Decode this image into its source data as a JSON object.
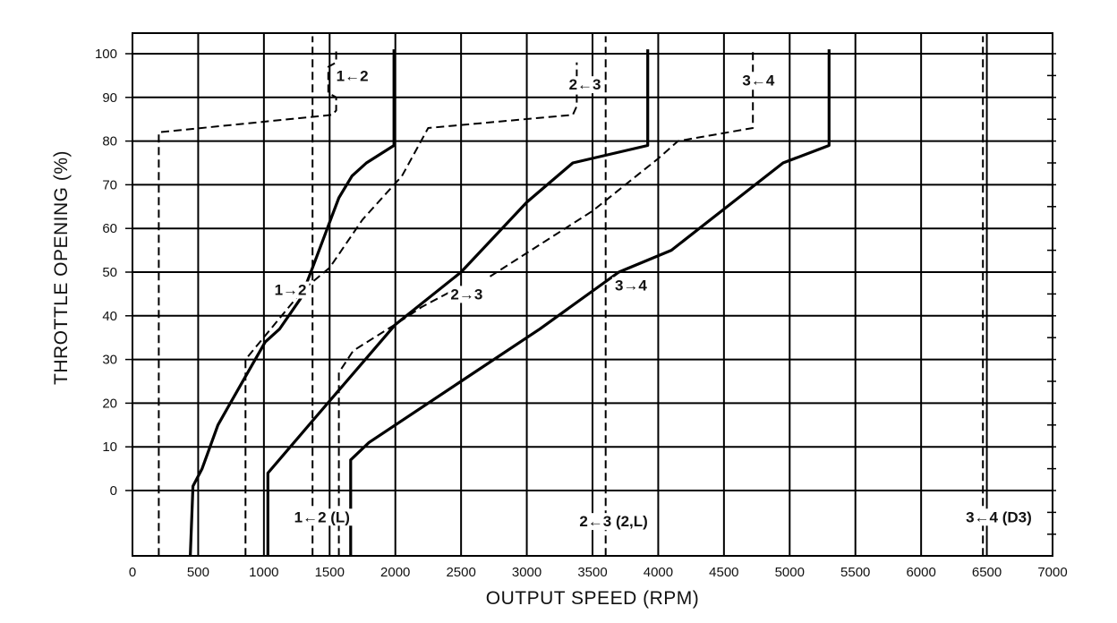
{
  "chart_data": {
    "type": "line",
    "xlabel": "OUTPUT SPEED (RPM)",
    "ylabel": "THROTTLE OPENING (%)",
    "xlim": [
      0,
      7000
    ],
    "ylim": [
      -15,
      105
    ],
    "x_ticks": [
      "0",
      "500",
      "1000",
      "1500",
      "2000",
      "2500",
      "3000",
      "3500",
      "4000",
      "4500",
      "5000",
      "5500",
      "6000",
      "6500",
      "7000"
    ],
    "y_ticks": [
      "0",
      "10",
      "20",
      "30",
      "40",
      "50",
      "60",
      "70",
      "80",
      "90",
      "100"
    ],
    "grid": true,
    "line_color": "#000000",
    "series": [
      {
        "name": "1→2",
        "style": "solid",
        "x": [
          440,
          460,
          530,
          650,
          820,
          1010,
          1120,
          1280,
          1370,
          1520,
          1570,
          1670,
          1780,
          1990,
          1990
        ],
        "y": [
          -15,
          1,
          5,
          15,
          24,
          34,
          37,
          44,
          51,
          63,
          67,
          72,
          75,
          79,
          101
        ]
      },
      {
        "name": "1←2",
        "style": "dashed",
        "x": [
          200,
          200,
          1520,
          1550,
          1550,
          1490,
          1490,
          1550,
          1550
        ],
        "y": [
          -15,
          82,
          86,
          87,
          90,
          91,
          97,
          98,
          101
        ]
      },
      {
        "name": "",
        "style": "dashed",
        "x": [
          860,
          860,
          1300,
          1500,
          1750,
          2050,
          2250,
          3350,
          3380,
          3380
        ],
        "y": [
          -15,
          30,
          46,
          51,
          62,
          72,
          83,
          86,
          88,
          98
        ]
      },
      {
        "name": "2→3",
        "style": "solid",
        "x": [
          1030,
          1030,
          1400,
          2000,
          2500,
          3000,
          3350,
          3920,
          3920
        ],
        "y": [
          -15,
          4,
          17,
          38,
          50,
          66,
          75,
          79,
          101
        ]
      },
      {
        "name": "2←3",
        "style": "dashed",
        "x": [
          1570,
          1570,
          1680,
          2050,
          2200,
          2450
        ],
        "y": [
          -15,
          27,
          32,
          39,
          42,
          46
        ]
      },
      {
        "name": "",
        "style": "dashed",
        "x": [
          2720,
          3500,
          4000,
          4150,
          4720,
          4720
        ],
        "y": [
          49,
          64,
          76,
          80,
          83,
          101
        ]
      },
      {
        "name": "3→4",
        "style": "solid",
        "x": [
          1660,
          1660,
          1800,
          2500,
          3100,
          3700,
          4100,
          4950,
          5300,
          5300
        ],
        "y": [
          -15,
          7,
          11,
          25,
          37,
          50,
          55,
          75,
          79,
          101
        ]
      },
      {
        "name": "1←2 (L)",
        "style": "dashed",
        "x": [
          1370,
          1370
        ],
        "y": [
          -15,
          104
        ]
      },
      {
        "name": "2←3 (2,L)",
        "style": "dashed",
        "x": [
          3600,
          3600
        ],
        "y": [
          -15,
          104
        ]
      },
      {
        "name": "3←4 (D3)",
        "style": "dashed",
        "x": [
          6470,
          6470
        ],
        "y": [
          -15,
          104
        ]
      }
    ],
    "annotations": [
      {
        "text": "1←2",
        "x": 1550,
        "y": 95
      },
      {
        "text": "2←3",
        "x": 3320,
        "y": 93
      },
      {
        "text": "3←4",
        "x": 4640,
        "y": 94
      },
      {
        "text": "1→2",
        "x": 1080,
        "y": 46
      },
      {
        "text": "2→3",
        "x": 2420,
        "y": 45
      },
      {
        "text": "3→4",
        "x": 3670,
        "y": 47
      },
      {
        "text": "1←2 (L)",
        "x": 1230,
        "y": -6
      },
      {
        "text": "2←3 (2,L)",
        "x": 3400,
        "y": -7
      },
      {
        "text": "3←4 (D3)",
        "x": 6340,
        "y": -6
      }
    ]
  }
}
